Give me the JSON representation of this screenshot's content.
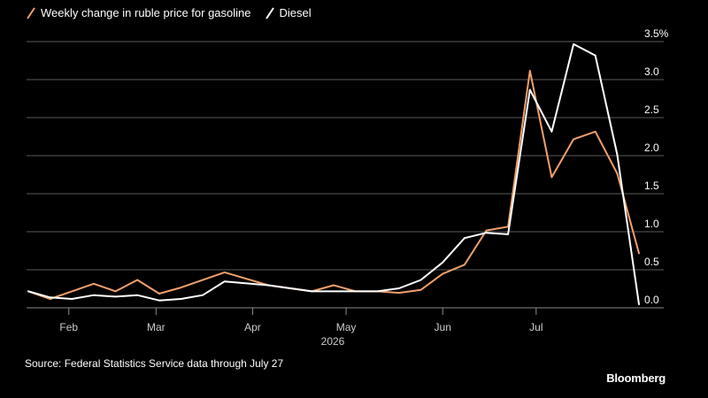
{
  "chart_data": {
    "type": "line",
    "title": "",
    "xlabel": "2026",
    "ylabel": "",
    "y_unit": "%",
    "ylim": [
      -0.1,
      3.5
    ],
    "yticks": [
      0.0,
      0.5,
      1.0,
      1.5,
      2.0,
      2.5,
      3.0,
      3.5
    ],
    "ytick_labels": [
      "0.0",
      "0.5",
      "1.0",
      "1.5",
      "2.0",
      "2.5",
      "3.0",
      "3.5%"
    ],
    "x_tick_labels": [
      {
        "label": "Feb",
        "date": "2026-02-01"
      },
      {
        "label": "Mar",
        "date": "2026-03-01"
      },
      {
        "label": "Apr",
        "date": "2026-04-01"
      },
      {
        "label": "May",
        "date": "2026-05-01"
      },
      {
        "label": "Jun",
        "date": "2026-06-01"
      },
      {
        "label": "Jul",
        "date": "2026-07-01"
      }
    ],
    "x_range": [
      "2026-01-19",
      "2026-08-03"
    ],
    "grid": "horizontal",
    "legend": "top-left",
    "series": [
      {
        "name": "Weekly change in ruble price for gasoline",
        "color": "#f2a06b",
        "points": [
          {
            "date": "2026-01-19",
            "value": 0.1
          },
          {
            "date": "2026-01-26",
            "value": 0.0
          },
          {
            "date": "2026-02-02",
            "value": 0.1
          },
          {
            "date": "2026-02-09",
            "value": 0.2
          },
          {
            "date": "2026-02-16",
            "value": 0.1
          },
          {
            "date": "2026-02-23",
            "value": 0.25
          },
          {
            "date": "2026-03-02",
            "value": 0.07
          },
          {
            "date": "2026-03-09",
            "value": 0.15
          },
          {
            "date": "2026-03-23",
            "value": 0.35
          },
          {
            "date": "2026-04-06",
            "value": 0.18
          },
          {
            "date": "2026-04-20",
            "value": 0.1
          },
          {
            "date": "2026-04-27",
            "value": 0.18
          },
          {
            "date": "2026-05-04",
            "value": 0.1
          },
          {
            "date": "2026-05-11",
            "value": 0.1
          },
          {
            "date": "2026-05-18",
            "value": 0.08
          },
          {
            "date": "2026-05-25",
            "value": 0.12
          },
          {
            "date": "2026-06-01",
            "value": 0.33
          },
          {
            "date": "2026-06-08",
            "value": 0.45
          },
          {
            "date": "2026-06-15",
            "value": 0.9
          },
          {
            "date": "2026-06-22",
            "value": 0.95
          },
          {
            "date": "2026-06-29",
            "value": 3.0
          },
          {
            "date": "2026-07-06",
            "value": 1.6
          },
          {
            "date": "2026-07-13",
            "value": 2.1
          },
          {
            "date": "2026-07-20",
            "value": 2.2
          },
          {
            "date": "2026-07-27",
            "value": 1.65
          },
          {
            "date": "2026-08-03",
            "value": 0.6
          }
        ]
      },
      {
        "name": "Diesel",
        "color": "#ffffff",
        "points": [
          {
            "date": "2026-01-19",
            "value": 0.1
          },
          {
            "date": "2026-01-26",
            "value": 0.02
          },
          {
            "date": "2026-02-02",
            "value": 0.0
          },
          {
            "date": "2026-02-09",
            "value": 0.05
          },
          {
            "date": "2026-02-16",
            "value": 0.03
          },
          {
            "date": "2026-02-23",
            "value": 0.05
          },
          {
            "date": "2026-03-02",
            "value": -0.02
          },
          {
            "date": "2026-03-09",
            "value": 0.0
          },
          {
            "date": "2026-03-16",
            "value": 0.05
          },
          {
            "date": "2026-03-23",
            "value": 0.23
          },
          {
            "date": "2026-04-06",
            "value": 0.18
          },
          {
            "date": "2026-04-20",
            "value": 0.1
          },
          {
            "date": "2026-04-27",
            "value": 0.1
          },
          {
            "date": "2026-05-04",
            "value": 0.1
          },
          {
            "date": "2026-05-11",
            "value": 0.1
          },
          {
            "date": "2026-05-18",
            "value": 0.14
          },
          {
            "date": "2026-05-25",
            "value": 0.25
          },
          {
            "date": "2026-06-01",
            "value": 0.48
          },
          {
            "date": "2026-06-08",
            "value": 0.8
          },
          {
            "date": "2026-06-15",
            "value": 0.87
          },
          {
            "date": "2026-06-22",
            "value": 0.85
          },
          {
            "date": "2026-06-29",
            "value": 2.75
          },
          {
            "date": "2026-07-06",
            "value": 2.2
          },
          {
            "date": "2026-07-13",
            "value": 3.35
          },
          {
            "date": "2026-07-20",
            "value": 3.2
          },
          {
            "date": "2026-07-27",
            "value": 1.9
          },
          {
            "date": "2026-08-03",
            "value": -0.07
          }
        ]
      }
    ]
  },
  "legend": {
    "gasoline_label": "Weekly change in ruble price for gasoline",
    "diesel_label": "Diesel"
  },
  "footer": {
    "source": "Source: Federal Statistics Service data through July 27",
    "brand": "Bloomberg"
  }
}
